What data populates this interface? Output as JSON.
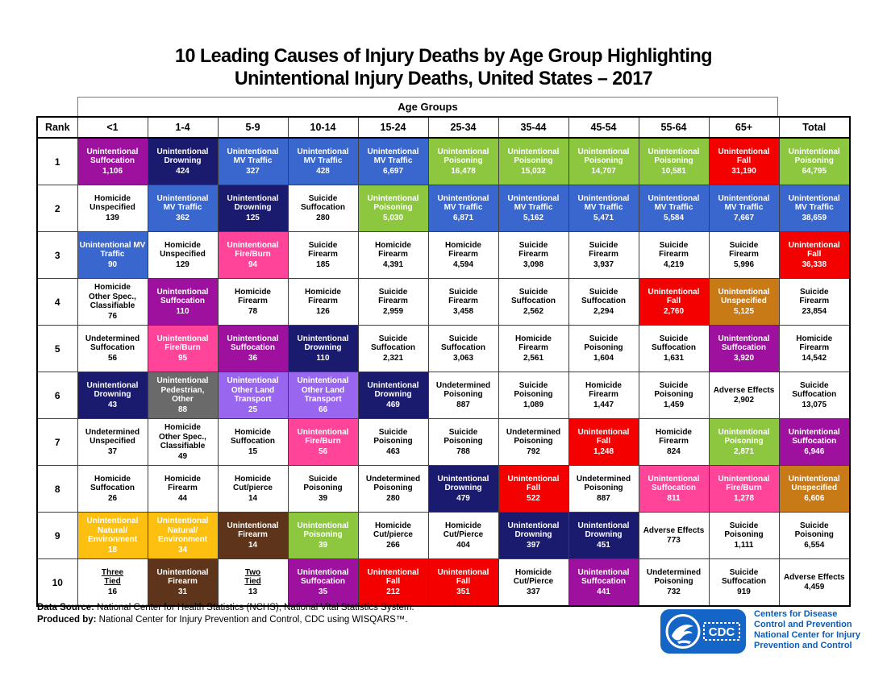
{
  "title": {
    "line1": "10 Leading Causes of Injury Deaths by Age Group Highlighting",
    "line2": "Unintentional Injury Deaths, United States – 2017"
  },
  "colors": {
    "purple": "#9E109E",
    "navy": "#1A1A6E",
    "blue": "#3A67CE",
    "green": "#8DC63F",
    "red": "#F40000",
    "pink": "#FF4499",
    "orange": "#C87A17",
    "gray": "#6A6A6A",
    "violet": "#9966F0",
    "yellow": "#FDC010",
    "brown": "#5E351A",
    "white": "#FFFFFF"
  },
  "chart_data": {
    "type": "table",
    "title": "10 Leading Causes of Injury Deaths by Age Group Highlighting Unintentional Injury Deaths, United States – 2017",
    "age_groups_header": "Age Groups",
    "rank_header": "Rank",
    "columns": [
      "<1",
      "1-4",
      "5-9",
      "10-14",
      "15-24",
      "25-34",
      "35-44",
      "45-54",
      "55-64",
      "65+",
      "Total"
    ],
    "rows": [
      {
        "rank": "1",
        "cells": [
          {
            "label": "Unintentional\nSuffocation",
            "value": "1,106",
            "color": "purple"
          },
          {
            "label": "Unintentional\nDrowning",
            "value": "424",
            "color": "navy"
          },
          {
            "label": "Unintentional\nMV Traffic",
            "value": "327",
            "color": "blue"
          },
          {
            "label": "Unintentional\nMV Traffic",
            "value": "428",
            "color": "blue"
          },
          {
            "label": "Unintentional\nMV Traffic",
            "value": "6,697",
            "color": "blue"
          },
          {
            "label": "Unintentional\nPoisoning",
            "value": "16,478",
            "color": "green"
          },
          {
            "label": "Unintentional\nPoisoning",
            "value": "15,032",
            "color": "green"
          },
          {
            "label": "Unintentional\nPoisoning",
            "value": "14,707",
            "color": "green"
          },
          {
            "label": "Unintentional\nPoisoning",
            "value": "10,581",
            "color": "green"
          },
          {
            "label": "Unintentional\nFall",
            "value": "31,190",
            "color": "red"
          },
          {
            "label": "Unintentional\nPoisoning",
            "value": "64,795",
            "color": "green"
          }
        ]
      },
      {
        "rank": "2",
        "cells": [
          {
            "label": "Homicide\nUnspecified",
            "value": "139",
            "color": "white"
          },
          {
            "label": "Unintentional\nMV Traffic",
            "value": "362",
            "color": "blue"
          },
          {
            "label": "Unintentional\nDrowning",
            "value": "125",
            "color": "navy"
          },
          {
            "label": "Suicide\nSuffocation",
            "value": "280",
            "color": "white"
          },
          {
            "label": "Unintentional\nPoisoning",
            "value": "5,030",
            "color": "green"
          },
          {
            "label": "Unintentional\nMV Traffic",
            "value": "6,871",
            "color": "blue"
          },
          {
            "label": "Unintentional\nMV Traffic",
            "value": "5,162",
            "color": "blue"
          },
          {
            "label": "Unintentional\nMV Traffic",
            "value": "5,471",
            "color": "blue"
          },
          {
            "label": "Unintentional\nMV Traffic",
            "value": "5,584",
            "color": "blue"
          },
          {
            "label": "Unintentional\nMV Traffic",
            "value": "7,667",
            "color": "blue"
          },
          {
            "label": "Unintentional\nMV Traffic",
            "value": "38,659",
            "color": "blue"
          }
        ]
      },
      {
        "rank": "3",
        "cells": [
          {
            "label": "Unintentional MV\nTraffic",
            "value": "90",
            "color": "blue"
          },
          {
            "label": "Homicide\nUnspecified",
            "value": "129",
            "color": "white"
          },
          {
            "label": "Unintentional\nFire/Burn",
            "value": "94",
            "color": "pink"
          },
          {
            "label": "Suicide\nFirearm",
            "value": "185",
            "color": "white"
          },
          {
            "label": "Homicide\nFirearm",
            "value": "4,391",
            "color": "white"
          },
          {
            "label": "Homicide\nFirearm",
            "value": "4,594",
            "color": "white"
          },
          {
            "label": "Suicide\nFirearm",
            "value": "3,098",
            "color": "white"
          },
          {
            "label": "Suicide\nFirearm",
            "value": "3,937",
            "color": "white"
          },
          {
            "label": "Suicide\nFirearm",
            "value": "4,219",
            "color": "white"
          },
          {
            "label": "Suicide\nFirearm",
            "value": "5,996",
            "color": "white"
          },
          {
            "label": "Unintentional\nFall",
            "value": "36,338",
            "color": "red"
          }
        ]
      },
      {
        "rank": "4",
        "cells": [
          {
            "label": "Homicide\nOther Spec.,\nClassifiable",
            "value": "76",
            "color": "white"
          },
          {
            "label": "Unintentional\nSuffocation",
            "value": "110",
            "color": "purple"
          },
          {
            "label": "Homicide\nFirearm",
            "value": "78",
            "color": "white"
          },
          {
            "label": "Homicide\nFirearm",
            "value": "126",
            "color": "white"
          },
          {
            "label": "Suicide\nFirearm",
            "value": "2,959",
            "color": "white"
          },
          {
            "label": "Suicide\nFirearm",
            "value": "3,458",
            "color": "white"
          },
          {
            "label": "Suicide\nSuffocation",
            "value": "2,562",
            "color": "white"
          },
          {
            "label": "Suicide\nSuffocation",
            "value": "2,294",
            "color": "white"
          },
          {
            "label": "Unintentional\nFall",
            "value": "2,760",
            "color": "red"
          },
          {
            "label": "Unintentional\nUnspecified",
            "value": "5,125",
            "color": "orange"
          },
          {
            "label": "Suicide\nFirearm",
            "value": "23,854",
            "color": "white"
          }
        ]
      },
      {
        "rank": "5",
        "cells": [
          {
            "label": "Undetermined\nSuffocation",
            "value": "56",
            "color": "white"
          },
          {
            "label": "Unintentional\nFire/Burn",
            "value": "95",
            "color": "pink"
          },
          {
            "label": "Unintentional\nSuffocation",
            "value": "36",
            "color": "purple"
          },
          {
            "label": "Unintentional\nDrowning",
            "value": "110",
            "color": "navy"
          },
          {
            "label": "Suicide\nSuffocation",
            "value": "2,321",
            "color": "white"
          },
          {
            "label": "Suicide\nSuffocation",
            "value": "3,063",
            "color": "white"
          },
          {
            "label": "Homicide\nFirearm",
            "value": "2,561",
            "color": "white"
          },
          {
            "label": "Suicide\nPoisoning",
            "value": "1,604",
            "color": "white"
          },
          {
            "label": "Suicide\nSuffocation",
            "value": "1,631",
            "color": "white"
          },
          {
            "label": "Unintentional\nSuffocation",
            "value": "3,920",
            "color": "purple"
          },
          {
            "label": "Homicide\nFirearm",
            "value": "14,542",
            "color": "white"
          }
        ]
      },
      {
        "rank": "6",
        "cells": [
          {
            "label": "Unintentional\nDrowning",
            "value": "43",
            "color": "navy"
          },
          {
            "label": "Unintentional\nPedestrian,\nOther",
            "value": "88",
            "color": "gray"
          },
          {
            "label": "Unintentional\nOther Land\nTransport",
            "value": "25",
            "color": "violet"
          },
          {
            "label": "Unintentional\nOther Land\nTransport",
            "value": "66",
            "color": "violet"
          },
          {
            "label": "Unintentional\nDrowning",
            "value": "469",
            "color": "navy"
          },
          {
            "label": "Undetermined\nPoisoning",
            "value": "887",
            "color": "white"
          },
          {
            "label": "Suicide\nPoisoning",
            "value": "1,089",
            "color": "white"
          },
          {
            "label": "Homicide\nFirearm",
            "value": "1,447",
            "color": "white"
          },
          {
            "label": "Suicide\nPoisoning",
            "value": "1,459",
            "color": "white"
          },
          {
            "label": "Adverse Effects",
            "value": "2,902",
            "color": "white"
          },
          {
            "label": "Suicide\nSuffocation",
            "value": "13,075",
            "color": "white"
          }
        ]
      },
      {
        "rank": "7",
        "cells": [
          {
            "label": "Undetermined\nUnspecified",
            "value": "37",
            "color": "white"
          },
          {
            "label": "Homicide\nOther Spec.,\nClassifiable",
            "value": "49",
            "color": "white"
          },
          {
            "label": "Homicide\nSuffocation",
            "value": "15",
            "color": "white"
          },
          {
            "label": "Unintentional\nFire/Burn",
            "value": "56",
            "color": "pink"
          },
          {
            "label": "Suicide\nPoisoning",
            "value": "463",
            "color": "white"
          },
          {
            "label": "Suicide\nPoisoning",
            "value": "788",
            "color": "white"
          },
          {
            "label": "Undetermined\nPoisoning",
            "value": "792",
            "color": "white"
          },
          {
            "label": "Unintentional\nFall",
            "value": "1,248",
            "color": "red"
          },
          {
            "label": "Homicide\nFirearm",
            "value": "824",
            "color": "white"
          },
          {
            "label": "Unintentional\nPoisoning",
            "value": "2,871",
            "color": "green"
          },
          {
            "label": "Unintentional\nSuffocation",
            "value": "6,946",
            "color": "purple"
          }
        ]
      },
      {
        "rank": "8",
        "cells": [
          {
            "label": "Homicide\nSuffocation",
            "value": "26",
            "color": "white"
          },
          {
            "label": "Homicide\nFirearm",
            "value": "44",
            "color": "white"
          },
          {
            "label": "Homicide\nCut/pierce",
            "value": "14",
            "color": "white"
          },
          {
            "label": "Suicide\nPoisoning",
            "value": "39",
            "color": "white"
          },
          {
            "label": "Undetermined\nPoisoning",
            "value": "280",
            "color": "white"
          },
          {
            "label": "Unintentional\nDrowning",
            "value": "479",
            "color": "navy"
          },
          {
            "label": "Unintentional\nFall",
            "value": "522",
            "color": "red"
          },
          {
            "label": "Undetermined\nPoisoning",
            "value": "887",
            "color": "white"
          },
          {
            "label": "Unintentional\nSuffocation",
            "value": "811",
            "color": "pink"
          },
          {
            "label": "Unintentional\nFire/Burn",
            "value": "1,278",
            "color": "pink"
          },
          {
            "label": "Unintentional\nUnspecified",
            "value": "6,606",
            "color": "orange"
          }
        ]
      },
      {
        "rank": "9",
        "cells": [
          {
            "label": "Unintentional\nNatural/\nEnvironment",
            "value": "18",
            "color": "yellow"
          },
          {
            "label": "Unintentional\nNatural/\nEnvironment",
            "value": "34",
            "color": "yellow"
          },
          {
            "label": "Unintentional\nFirearm",
            "value": "14",
            "color": "brown"
          },
          {
            "label": "Unintentional\nPoisoning",
            "value": "39",
            "color": "green"
          },
          {
            "label": "Homicide\nCut/pierce",
            "value": "266",
            "color": "white"
          },
          {
            "label": "Homicide\nCut/Pierce",
            "value": "404",
            "color": "white"
          },
          {
            "label": "Unintentional\nDrowning",
            "value": "397",
            "color": "navy"
          },
          {
            "label": "Unintentional\nDrowning",
            "value": "451",
            "color": "navy"
          },
          {
            "label": "Adverse Effects",
            "value": "773",
            "color": "white"
          },
          {
            "label": "Suicide\nPoisoning",
            "value": "1,111",
            "color": "white"
          },
          {
            "label": "Suicide\nPoisoning",
            "value": "6,554",
            "color": "white"
          }
        ]
      },
      {
        "rank": "10",
        "cells": [
          {
            "label": "Three\nTied",
            "value": "16",
            "color": "white",
            "underline": true
          },
          {
            "label": "Unintentional\nFirearm",
            "value": "31",
            "color": "brown"
          },
          {
            "label": "Two\nTied",
            "value": "13",
            "color": "white",
            "underline": true
          },
          {
            "label": "Unintentional\nSuffocation",
            "value": "35",
            "color": "purple"
          },
          {
            "label": "Unintentional\nFall",
            "value": "212",
            "color": "red"
          },
          {
            "label": "Unintentional\nFall",
            "value": "351",
            "color": "red"
          },
          {
            "label": "Homicide\nCut/Pierce",
            "value": "337",
            "color": "white"
          },
          {
            "label": "Unintentional\nSuffocation",
            "value": "441",
            "color": "purple"
          },
          {
            "label": "Undetermined\nPoisoning",
            "value": "732",
            "color": "white"
          },
          {
            "label": "Suicide\nSuffocation",
            "value": "919",
            "color": "white"
          },
          {
            "label": "Adverse Effects",
            "value": "4,459",
            "color": "white"
          }
        ]
      }
    ]
  },
  "footer": {
    "data_source_label": "Data Source:",
    "data_source_text": " National Center for Health Statistics (NCHS), National Vital Statistics System.",
    "produced_by_label": "Produced by:",
    "produced_by_text": " National Center for Injury Prevention and Control, CDC using WISQARS™."
  },
  "logo": {
    "acronym": "CDC",
    "lines": [
      "Centers for Disease",
      "Control and Prevention",
      "National Center for Injury",
      "Prevention and Control"
    ],
    "blue": "#1565C6"
  }
}
